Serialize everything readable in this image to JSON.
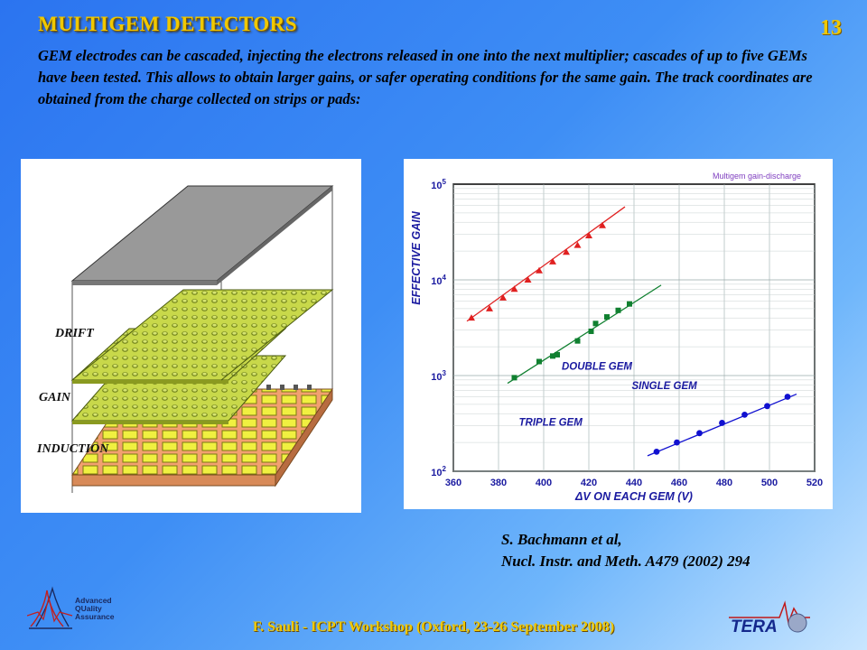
{
  "title": "MULTIGEM DETECTORS",
  "page_number": "13",
  "intro": "GEM electrodes can be cascaded, injecting the electrons released in one into the next multiplier; cascades of up to five GEMs have been tested. This allows to obtain larger gains, or safer operating conditions for the same gain. The track coordinates are obtained from the charge collected on strips or pads:",
  "diagram": {
    "labels": {
      "drift": "DRIFT",
      "gain": "GAIN",
      "induction": "INDUCTION"
    }
  },
  "reference": {
    "line1": "S. Bachmann et al,",
    "line2": "Nucl. Instr. and Meth. A479 (2002) 294"
  },
  "footer": "F. Sauli - ICPT Workshop (Oxford, 23-26 September 2008)",
  "logos": {
    "aqa_lines": [
      "Advanced",
      "QUality",
      "Assurance"
    ],
    "tera": "TERA"
  },
  "chart_data": {
    "type": "scatter",
    "title": "Multigem gain-discharge",
    "xlabel": "ΔV ON EACH GEM (V)",
    "ylabel": "EFFECTIVE GAIN",
    "xlim": [
      360,
      520
    ],
    "ylim": [
      100,
      100000
    ],
    "yscale": "log",
    "xticks": [
      360,
      380,
      400,
      420,
      440,
      460,
      480,
      500,
      520
    ],
    "yticks": [
      {
        "value": 100,
        "base": "10",
        "exp": "2"
      },
      {
        "value": 1000,
        "base": "10",
        "exp": "3"
      },
      {
        "value": 10000,
        "base": "10",
        "exp": "4"
      },
      {
        "value": 100000,
        "base": "10",
        "exp": "5"
      }
    ],
    "grid": true,
    "series": [
      {
        "name": "TRIPLE GEM",
        "color": "#e02020",
        "marker": "triangle",
        "x": [
          368,
          376,
          382,
          387,
          393,
          398,
          404,
          410,
          415,
          420,
          426
        ],
        "y": [
          4000,
          5000,
          6500,
          8000,
          10000,
          12500,
          15500,
          19500,
          23000,
          29000,
          37000
        ],
        "fit": {
          "x": [
            366,
            436
          ],
          "y": [
            3700,
            58000
          ]
        }
      },
      {
        "name": "DOUBLE GEM",
        "color": "#108030",
        "marker": "square",
        "x": [
          387,
          398,
          404,
          406,
          415,
          421,
          423,
          428,
          433,
          438
        ],
        "y": [
          950,
          1400,
          1600,
          1650,
          2300,
          2900,
          3500,
          4100,
          4800,
          5600
        ],
        "fit": {
          "x": [
            384,
            452
          ],
          "y": [
            830,
            8800
          ]
        }
      },
      {
        "name": "SINGLE GEM",
        "color": "#1010d0",
        "marker": "circle",
        "x": [
          450,
          459,
          469,
          479,
          489,
          499,
          508
        ],
        "y": [
          160,
          200,
          250,
          320,
          390,
          480,
          600
        ],
        "fit": {
          "x": [
            446,
            512
          ],
          "y": [
            145,
            640
          ]
        }
      }
    ]
  }
}
